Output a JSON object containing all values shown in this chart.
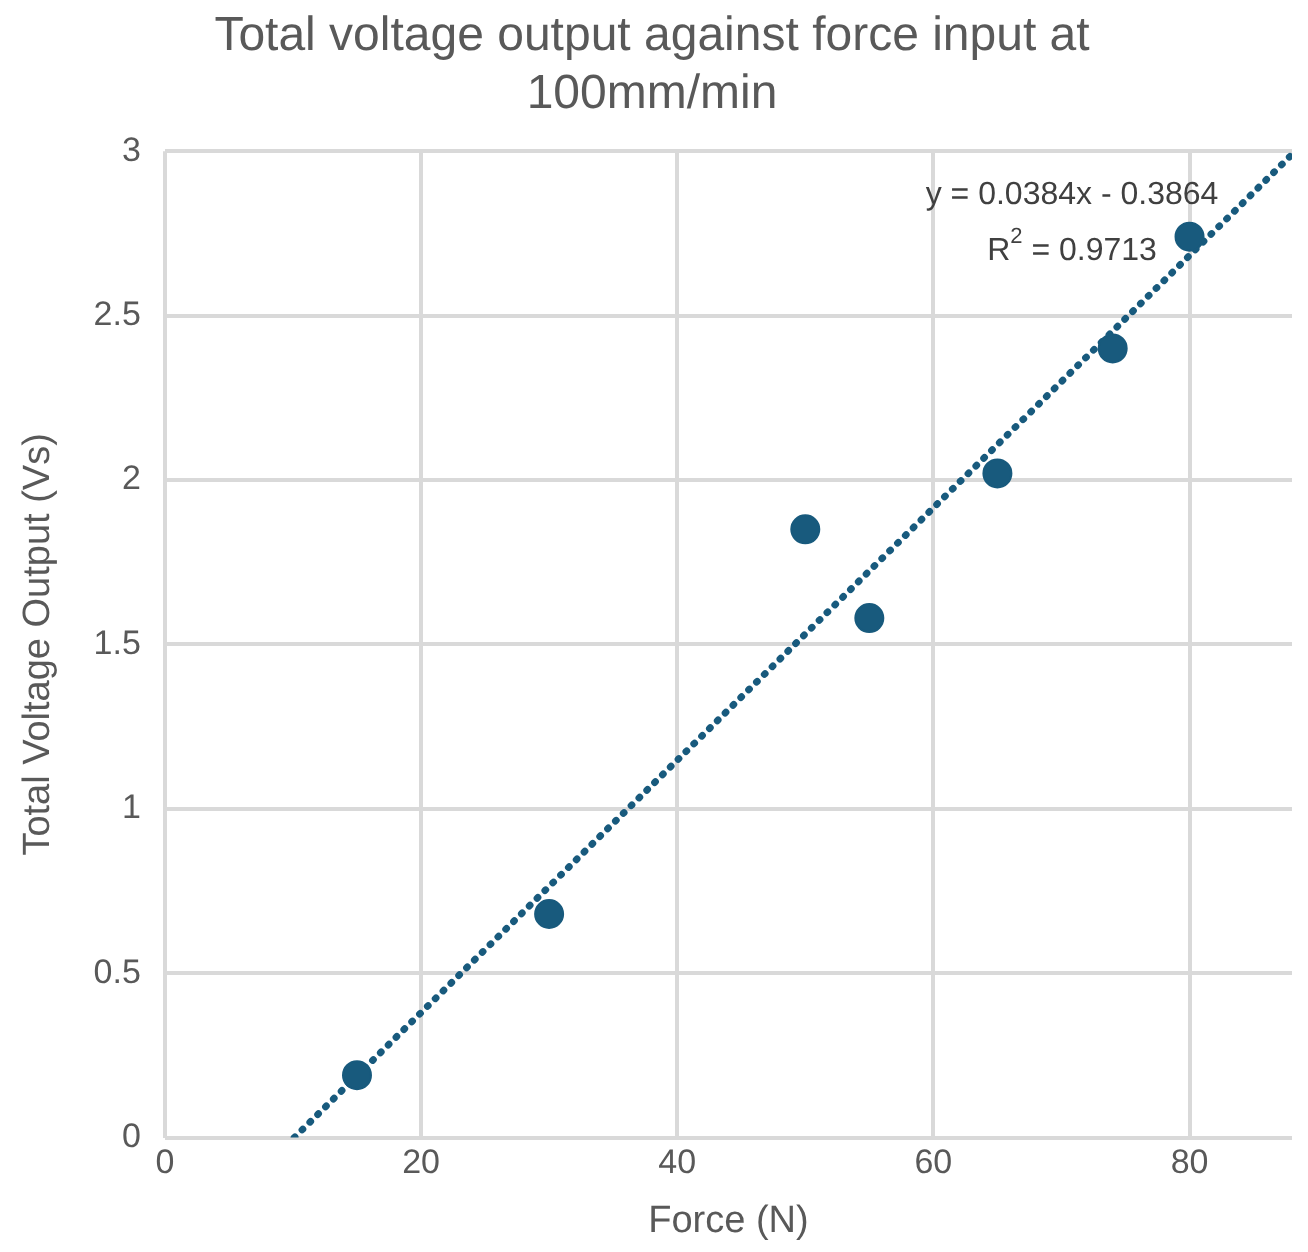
{
  "chart_data": {
    "type": "scatter",
    "title": "Total voltage output against force input at 100mm/min",
    "xlabel": "Force (N)",
    "ylabel": "Total Voltage Output (Vs)",
    "series": [
      {
        "type": "scatter",
        "color": "#185a7d",
        "x": [
          15,
          30,
          50,
          55,
          65,
          74,
          80
        ],
        "values": [
          0.19,
          0.68,
          1.85,
          1.58,
          2.02,
          2.4,
          2.74
        ],
        "marker": "circle"
      },
      {
        "type": "line",
        "color": "#185a7d",
        "x": [
          10.1,
          88
        ],
        "values": [
          0.0,
          2.99
        ],
        "line_style": "dotted",
        "marker": "none"
      }
    ],
    "xlim": [
      0,
      88
    ],
    "xticks": [
      0,
      20,
      40,
      60,
      80
    ],
    "ylim": [
      0,
      3
    ],
    "yticks": [
      0,
      0.5,
      1,
      1.5,
      2,
      2.5,
      3
    ],
    "grid": true,
    "legend": false,
    "annotations": [
      "y = 0.0384x - 0.3864",
      "R$^{2}$ = 0.9713"
    ]
  }
}
